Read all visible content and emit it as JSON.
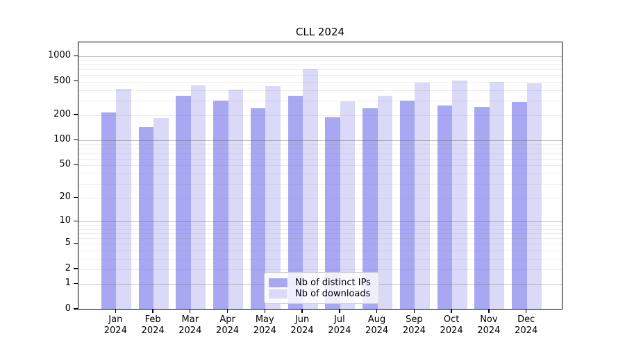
{
  "chart_data": {
    "type": "bar",
    "title": "CLL 2024",
    "categories": [
      "Jan 2024",
      "Feb 2024",
      "Mar 2024",
      "Apr 2024",
      "May 2024",
      "Jun 2024",
      "Jul 2024",
      "Aug 2024",
      "Sep 2024",
      "Oct 2024",
      "Nov 2024",
      "Dec 2024"
    ],
    "series": [
      {
        "name": "Nb of distinct IPs",
        "color": "#a8a8f2",
        "values": [
          207,
          139,
          326,
          289,
          234,
          331,
          183,
          233,
          288,
          252,
          241,
          278
        ]
      },
      {
        "name": "Nb of downloads",
        "color": "#dadaf8",
        "values": [
          398,
          178,
          437,
          389,
          430,
          690,
          282,
          330,
          470,
          498,
          482,
          464
        ]
      }
    ],
    "xlabel": "",
    "ylabel": "",
    "y_scale": "log1p",
    "y_ticks": [
      0,
      1,
      2,
      5,
      10,
      20,
      50,
      100,
      200,
      500,
      1000
    ],
    "ylim": [
      0,
      1440
    ],
    "grid": true,
    "legend_position": "lower center"
  }
}
